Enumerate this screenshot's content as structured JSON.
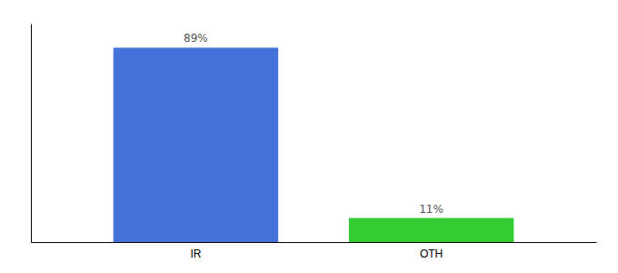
{
  "chart_data": {
    "type": "bar",
    "categories": [
      "IR",
      "OTH"
    ],
    "values": [
      89,
      11
    ],
    "value_labels": [
      "89%",
      "11%"
    ],
    "colors": [
      "#4472db",
      "#33cc33"
    ],
    "ylim": [
      0,
      100
    ],
    "yticks": [],
    "data_labels": true,
    "tick_labels": "x"
  }
}
